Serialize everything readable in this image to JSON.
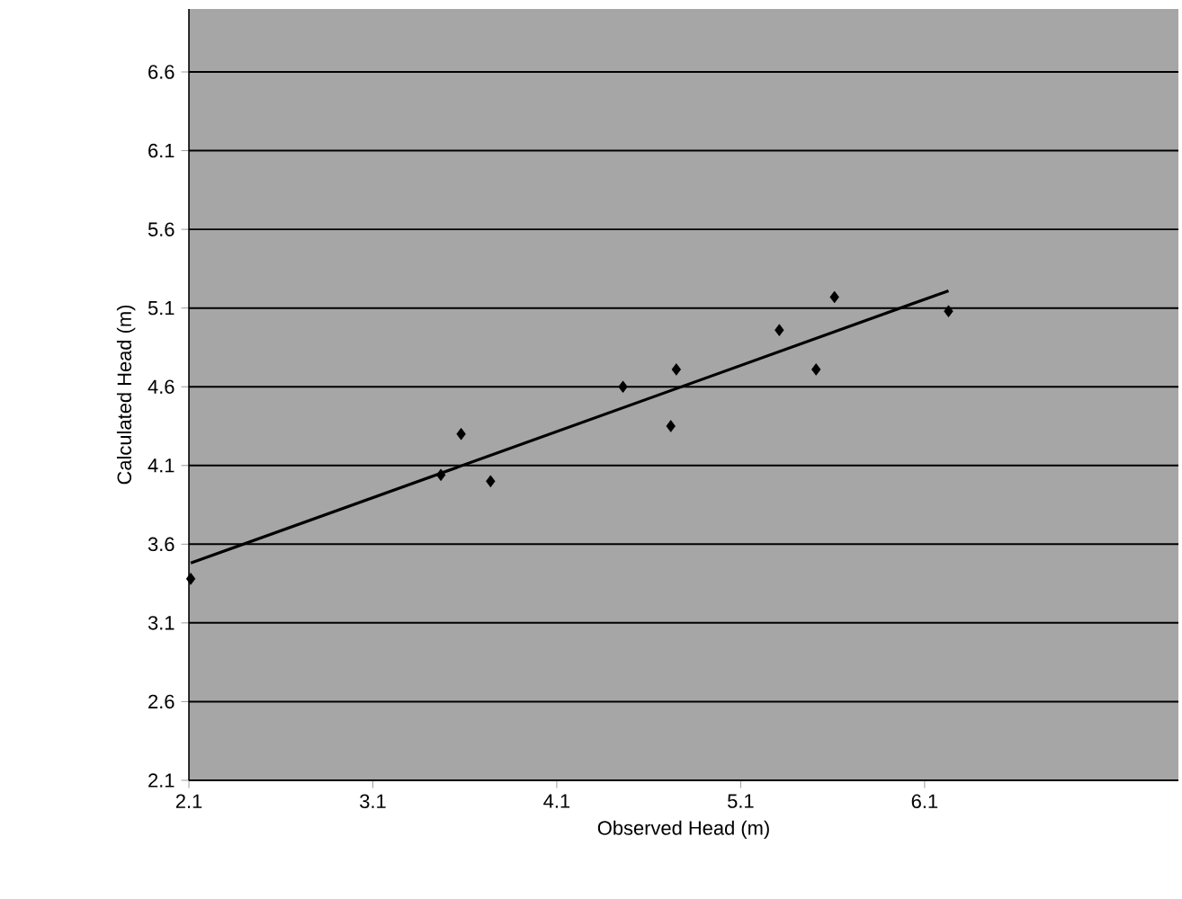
{
  "chart_data": {
    "type": "scatter",
    "xlabel": "Observed Head (m)",
    "ylabel": "Calculated Head (m)",
    "xlim": [
      2.1,
      7.48
    ],
    "ylim": [
      2.1,
      7.0
    ],
    "xticks": [
      2.1,
      3.1,
      4.1,
      5.1,
      6.1
    ],
    "yticks": [
      2.1,
      2.6,
      3.1,
      3.6,
      4.1,
      4.6,
      5.1,
      5.6,
      6.1,
      6.6
    ],
    "grid": "y",
    "marker": "diamond",
    "series": [
      {
        "color": "#000000",
        "x": [
          2.11,
          3.47,
          3.58,
          3.74,
          4.46,
          4.72,
          4.75,
          5.31,
          5.51,
          5.61,
          6.23
        ],
        "values": [
          3.38,
          4.04,
          4.3,
          4.0,
          4.6,
          4.35,
          4.71,
          4.96,
          4.71,
          5.17,
          5.08
        ]
      },
      {
        "type": "line",
        "color": "#000000",
        "marker": "none",
        "x": [
          2.11,
          6.23
        ],
        "values": [
          3.48,
          5.21
        ]
      }
    ]
  }
}
